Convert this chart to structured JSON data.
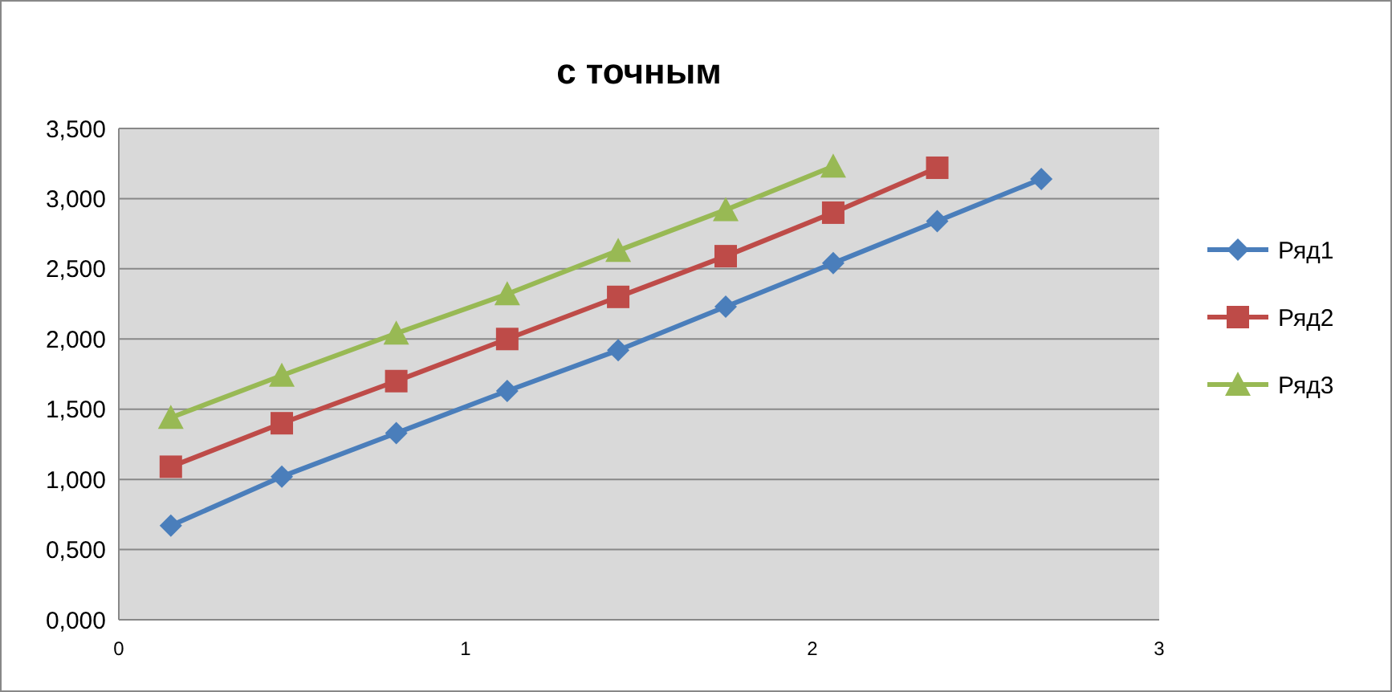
{
  "chart_data": {
    "type": "line",
    "title": "с точным",
    "x": [
      0.15,
      0.47,
      0.8,
      1.12,
      1.44,
      1.75,
      2.06,
      2.36,
      2.66
    ],
    "series": [
      {
        "name": "Ряд1",
        "color": "#4a7ebb",
        "marker": "diamond",
        "values": [
          0.67,
          1.02,
          1.33,
          1.63,
          1.92,
          2.23,
          2.54,
          2.84,
          3.14
        ]
      },
      {
        "name": "Ряд2",
        "color": "#be4b48",
        "marker": "square",
        "values": [
          1.09,
          1.4,
          1.7,
          2.0,
          2.3,
          2.59,
          2.9,
          3.22,
          null
        ]
      },
      {
        "name": "Ряд3",
        "color": "#98b954",
        "marker": "triangle",
        "values": [
          1.44,
          1.74,
          2.04,
          2.32,
          2.63,
          2.92,
          3.23,
          null,
          null
        ]
      }
    ],
    "xlim": [
      0,
      3
    ],
    "xticks": [
      0,
      1,
      2,
      3
    ],
    "ylim": [
      0,
      3.5
    ],
    "yticks": [
      {
        "value": 0,
        "label": "0,000"
      },
      {
        "value": 0.5,
        "label": "0,500"
      },
      {
        "value": 1,
        "label": "1,000"
      },
      {
        "value": 1.5,
        "label": "1,500"
      },
      {
        "value": 2,
        "label": "2,000"
      },
      {
        "value": 2.5,
        "label": "2,500"
      },
      {
        "value": 3,
        "label": "3,000"
      },
      {
        "value": 3.5,
        "label": "3,500"
      }
    ],
    "grid": "y",
    "legend": "right",
    "line_style": "solid"
  }
}
